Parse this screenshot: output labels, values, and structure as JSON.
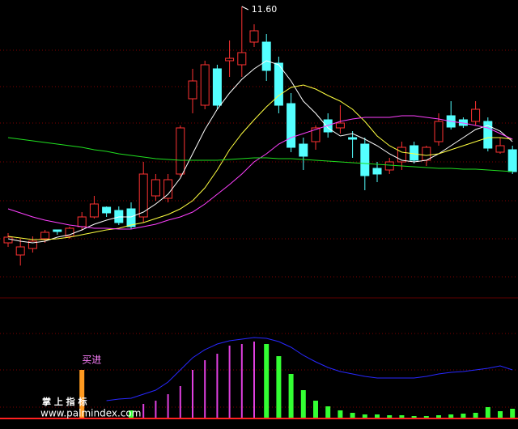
{
  "chart_data": [
    {
      "type": "candlestick",
      "ylim": [
        8.0,
        11.68
      ],
      "high_label": "11.60",
      "up_color": "#ff3232",
      "down_color": "#54ffff",
      "open": [
        8.68,
        8.53,
        8.61,
        8.73,
        8.84,
        8.76,
        8.88,
        9.0,
        9.12,
        9.08,
        9.1,
        9.0,
        9.26,
        9.23,
        9.53,
        10.46,
        10.38,
        10.83,
        10.93,
        10.88,
        11.16,
        11.16,
        10.9,
        10.4,
        9.9,
        9.93,
        10.2,
        10.1,
        9.98,
        9.9,
        9.6,
        9.58,
        9.68,
        9.88,
        9.7,
        9.93,
        10.25,
        10.2,
        10.18,
        10.18,
        9.8,
        9.83
      ],
      "high": [
        8.8,
        8.73,
        8.76,
        8.84,
        8.84,
        8.88,
        9.06,
        9.26,
        9.13,
        9.13,
        9.18,
        9.68,
        9.53,
        9.53,
        10.13,
        10.83,
        10.93,
        10.88,
        11.18,
        11.6,
        11.38,
        11.26,
        10.98,
        10.53,
        9.98,
        10.13,
        10.28,
        10.38,
        10.06,
        9.98,
        9.68,
        9.73,
        9.93,
        9.93,
        9.88,
        10.28,
        10.43,
        10.23,
        10.43,
        10.23,
        9.98,
        9.88
      ],
      "low": [
        8.63,
        8.4,
        8.56,
        8.68,
        8.78,
        8.73,
        8.83,
        8.98,
        9.0,
        8.9,
        8.85,
        8.93,
        9.2,
        9.18,
        9.5,
        10.28,
        10.33,
        10.33,
        10.73,
        10.73,
        11.1,
        10.68,
        10.28,
        9.8,
        9.58,
        9.83,
        9.98,
        10.03,
        9.73,
        9.33,
        9.43,
        9.53,
        9.58,
        9.66,
        9.63,
        9.88,
        10.08,
        10.1,
        10.13,
        9.81,
        9.78,
        9.53
      ],
      "close": [
        8.75,
        8.63,
        8.7,
        8.81,
        8.82,
        8.86,
        9.0,
        9.16,
        9.05,
        8.93,
        8.88,
        9.53,
        9.46,
        9.46,
        10.1,
        10.68,
        10.88,
        10.38,
        10.96,
        11.03,
        11.3,
        10.81,
        10.38,
        9.86,
        9.75,
        10.1,
        10.05,
        10.16,
        9.96,
        9.51,
        9.53,
        9.68,
        9.86,
        9.7,
        9.86,
        10.18,
        10.11,
        10.13,
        10.33,
        9.85,
        9.88,
        9.56
      ],
      "lines": [
        {
          "color": "#ffffff",
          "values": [
            8.73,
            8.7,
            8.68,
            8.7,
            8.75,
            8.78,
            8.84,
            8.91,
            8.96,
            9.0,
            9.0,
            9.06,
            9.16,
            9.28,
            9.48,
            9.78,
            10.08,
            10.33,
            10.53,
            10.7,
            10.83,
            10.93,
            10.88,
            10.68,
            10.43,
            10.28,
            10.1,
            10.0,
            10.03,
            9.96,
            9.88,
            9.78,
            9.7,
            9.68,
            9.7,
            9.78,
            9.88,
            9.98,
            10.08,
            10.13,
            10.06,
            9.93
          ]
        },
        {
          "color": "#ffff40",
          "values": [
            8.76,
            8.74,
            8.72,
            8.72,
            8.73,
            8.75,
            8.78,
            8.81,
            8.84,
            8.86,
            8.9,
            8.93,
            8.98,
            9.03,
            9.1,
            9.2,
            9.36,
            9.58,
            9.83,
            10.03,
            10.2,
            10.36,
            10.5,
            10.6,
            10.63,
            10.58,
            10.5,
            10.43,
            10.33,
            10.18,
            10.0,
            9.88,
            9.8,
            9.78,
            9.76,
            9.78,
            9.83,
            9.88,
            9.93,
            9.98,
            9.98,
            9.96
          ]
        },
        {
          "color": "#ff40ff",
          "values": [
            9.1,
            9.05,
            9.0,
            8.96,
            8.93,
            8.9,
            8.88,
            8.86,
            8.86,
            8.85,
            8.85,
            8.88,
            8.91,
            8.96,
            9.0,
            9.06,
            9.16,
            9.28,
            9.4,
            9.53,
            9.68,
            9.78,
            9.9,
            9.98,
            10.03,
            10.08,
            10.13,
            10.18,
            10.21,
            10.23,
            10.23,
            10.23,
            10.25,
            10.25,
            10.23,
            10.21,
            10.18,
            10.16,
            10.13,
            10.1,
            10.03,
            9.96
          ]
        },
        {
          "color": "#20e020",
          "values": [
            9.98,
            9.96,
            9.94,
            9.92,
            9.9,
            9.88,
            9.86,
            9.83,
            9.81,
            9.78,
            9.76,
            9.74,
            9.72,
            9.71,
            9.7,
            9.7,
            9.7,
            9.7,
            9.71,
            9.72,
            9.73,
            9.73,
            9.72,
            9.72,
            9.71,
            9.7,
            9.69,
            9.68,
            9.67,
            9.66,
            9.65,
            9.64,
            9.63,
            9.62,
            9.61,
            9.6,
            9.6,
            9.59,
            9.59,
            9.58,
            9.57,
            9.56
          ]
        }
      ]
    },
    {
      "type": "indicator",
      "ylim": [
        0,
        150
      ],
      "up_color": "#e040e0",
      "down_color": "#33ff33",
      "bars": [
        null,
        null,
        null,
        null,
        null,
        null,
        null,
        null,
        null,
        null,
        10,
        18,
        22,
        30,
        40,
        60,
        72,
        80,
        90,
        92,
        95,
        92,
        77,
        55,
        35,
        22,
        15,
        10,
        7,
        5,
        5,
        4,
        4,
        3,
        3,
        4,
        5,
        6,
        7,
        14,
        9,
        12
      ],
      "bar_colors": [
        null,
        null,
        null,
        null,
        null,
        null,
        null,
        null,
        null,
        null,
        "#33ff33",
        "#e040e0",
        "#e040e0",
        "#e040e0",
        "#e040e0",
        "#e040e0",
        "#e040e0",
        "#e040e0",
        "#e040e0",
        "#e040e0",
        "#e040e0",
        "#33ff33",
        "#33ff33",
        "#33ff33",
        "#33ff33",
        "#33ff33",
        "#33ff33",
        "#33ff33",
        "#33ff33",
        "#33ff33",
        "#33ff33",
        "#33ff33",
        "#33ff33",
        "#33ff33",
        "#33ff33",
        "#33ff33",
        "#33ff33",
        "#33ff33",
        "#33ff33",
        "#33ff33",
        "#33ff33",
        "#33ff33"
      ],
      "line": {
        "color": "#2828ff",
        "values": [
          null,
          null,
          null,
          null,
          null,
          null,
          null,
          null,
          22,
          24,
          25,
          30,
          35,
          45,
          60,
          75,
          85,
          92,
          96,
          98,
          100,
          99,
          95,
          88,
          78,
          70,
          63,
          58,
          55,
          52,
          50,
          50,
          50,
          50,
          52,
          55,
          57,
          58,
          60,
          62,
          65,
          60
        ]
      },
      "signal": {
        "color": "#ff9a20",
        "label": "买进",
        "values": [
          null,
          null,
          null,
          null,
          null,
          null,
          60,
          null,
          null,
          null,
          null,
          null,
          null,
          null,
          null,
          null,
          null,
          null,
          null,
          null,
          null,
          null,
          null,
          null,
          null,
          null,
          null,
          null,
          null,
          null,
          null,
          null,
          null,
          null,
          null,
          null,
          null,
          null,
          null,
          null,
          null,
          null
        ]
      },
      "watermark": "掌 上 指 标",
      "site": "www.palmindex.com"
    }
  ]
}
